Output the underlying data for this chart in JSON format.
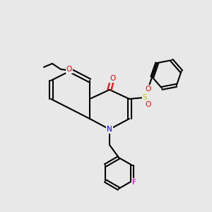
{
  "background_color": "#e8e8e8",
  "bond_color": "#000000",
  "bond_width": 1.5,
  "atom_colors": {
    "O": "#ff0000",
    "N": "#0000ff",
    "S": "#cccc00",
    "F": "#cc00cc",
    "C": "#000000"
  },
  "font_size": 7.5,
  "figsize": [
    3.0,
    3.0
  ],
  "dpi": 100
}
